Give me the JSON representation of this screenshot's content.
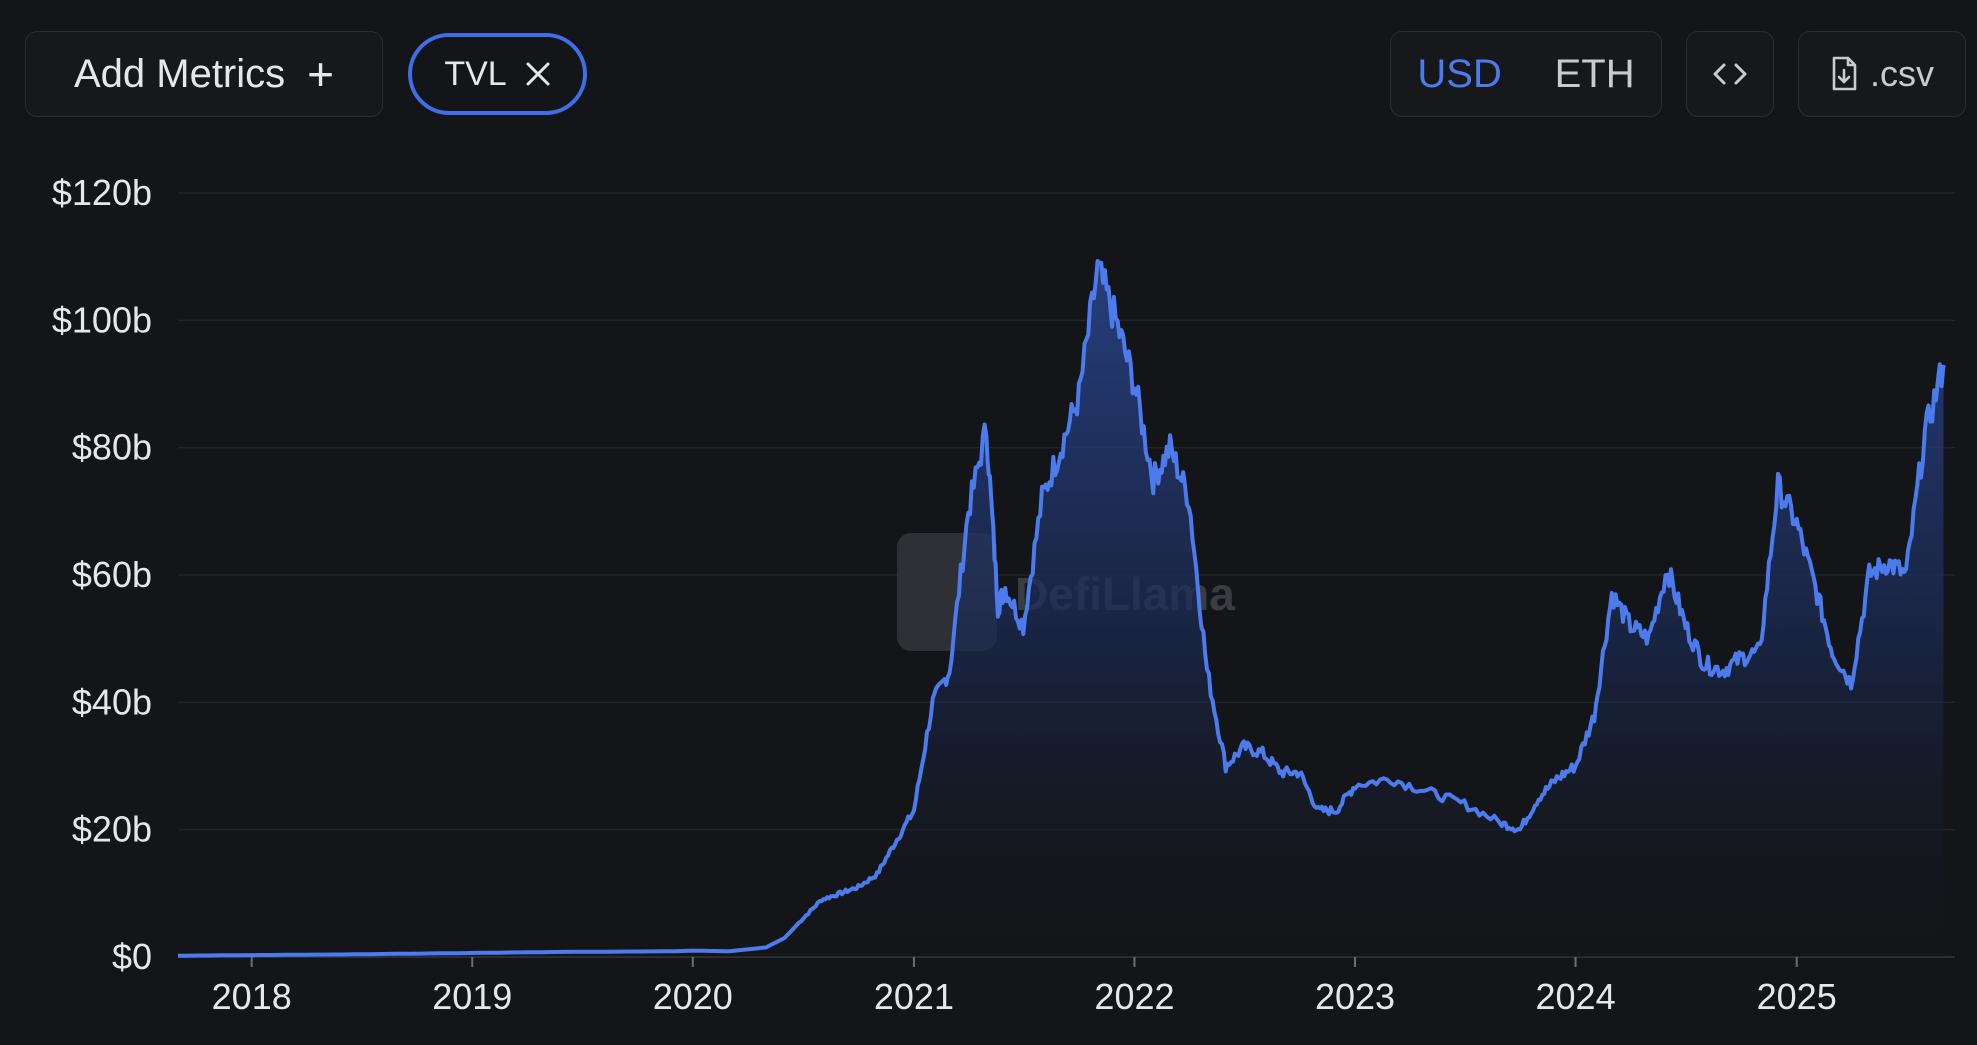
{
  "controls": {
    "add_metrics_label": "Add Metrics",
    "add_metrics_icon": "plus-icon",
    "metric_chip_label": "TVL",
    "metric_chip_icon": "close-icon",
    "currency_options": [
      "USD",
      "ETH"
    ],
    "currency_selected": "USD",
    "embed_icon": "code-icon",
    "csv_label": ".csv",
    "csv_icon": "file-download-icon"
  },
  "watermark": "DefiLlama",
  "colors": {
    "background": "#141518",
    "line": "#4b7bec",
    "accent": "#3f6ee8",
    "grid": "#22242a"
  },
  "chart_data": {
    "type": "area",
    "series": [
      {
        "name": "TVL",
        "x": [
          "2017-09",
          "2018-01",
          "2018-06",
          "2018-12",
          "2019-06",
          "2019-12",
          "2020-01",
          "2020-03",
          "2020-05",
          "2020-06",
          "2020-07",
          "2020-08",
          "2020-09",
          "2020-10",
          "2020-11",
          "2020-12",
          "2021-01",
          "2021-02",
          "2021-03",
          "2021-04",
          "2021-05",
          "2021-05-20",
          "2021-06",
          "2021-07",
          "2021-08",
          "2021-09",
          "2021-10",
          "2021-11",
          "2021-12",
          "2022-01",
          "2022-02",
          "2022-03",
          "2022-04",
          "2022-05",
          "2022-06",
          "2022-07",
          "2022-08",
          "2022-09",
          "2022-10",
          "2022-11",
          "2022-12",
          "2023-01",
          "2023-03",
          "2023-05",
          "2023-07",
          "2023-09",
          "2023-10",
          "2023-11",
          "2023-12",
          "2024-01",
          "2024-02",
          "2024-03",
          "2024-04",
          "2024-05",
          "2024-06",
          "2024-07",
          "2024-08",
          "2024-09",
          "2024-10",
          "2024-11",
          "2024-12",
          "2025-01",
          "2025-02",
          "2025-03",
          "2025-04",
          "2025-05",
          "2025-06",
          "2025-07",
          "2025-08",
          "2025-09"
        ],
        "y": [
          0.2,
          0.3,
          0.4,
          0.6,
          0.8,
          0.9,
          1.0,
          0.9,
          1.5,
          3,
          6,
          9,
          10,
          11,
          13,
          18,
          23,
          40,
          45,
          70,
          83,
          55,
          58,
          52,
          72,
          80,
          88,
          108,
          100,
          90,
          75,
          80,
          72,
          45,
          30,
          33,
          32,
          29,
          29,
          23,
          23,
          27,
          28,
          26,
          24,
          21,
          20,
          25,
          28,
          30,
          38,
          57,
          52,
          50,
          61,
          52,
          46,
          45,
          47,
          48,
          74,
          68,
          58,
          48,
          43,
          60,
          62,
          60,
          82,
          93
        ]
      }
    ],
    "title": "",
    "xlabel": "",
    "ylabel": "",
    "ylim": [
      0,
      120
    ],
    "y_unit": "billion USD",
    "x_ticks": [
      "2018",
      "2019",
      "2020",
      "2021",
      "2022",
      "2023",
      "2024",
      "2025"
    ],
    "y_ticks": [
      "$0",
      "$20b",
      "$40b",
      "$60b",
      "$80b",
      "$100b",
      "$120b"
    ],
    "y_tick_values": [
      0,
      20,
      40,
      60,
      80,
      100,
      120
    ],
    "grid": true,
    "legend": "none"
  }
}
